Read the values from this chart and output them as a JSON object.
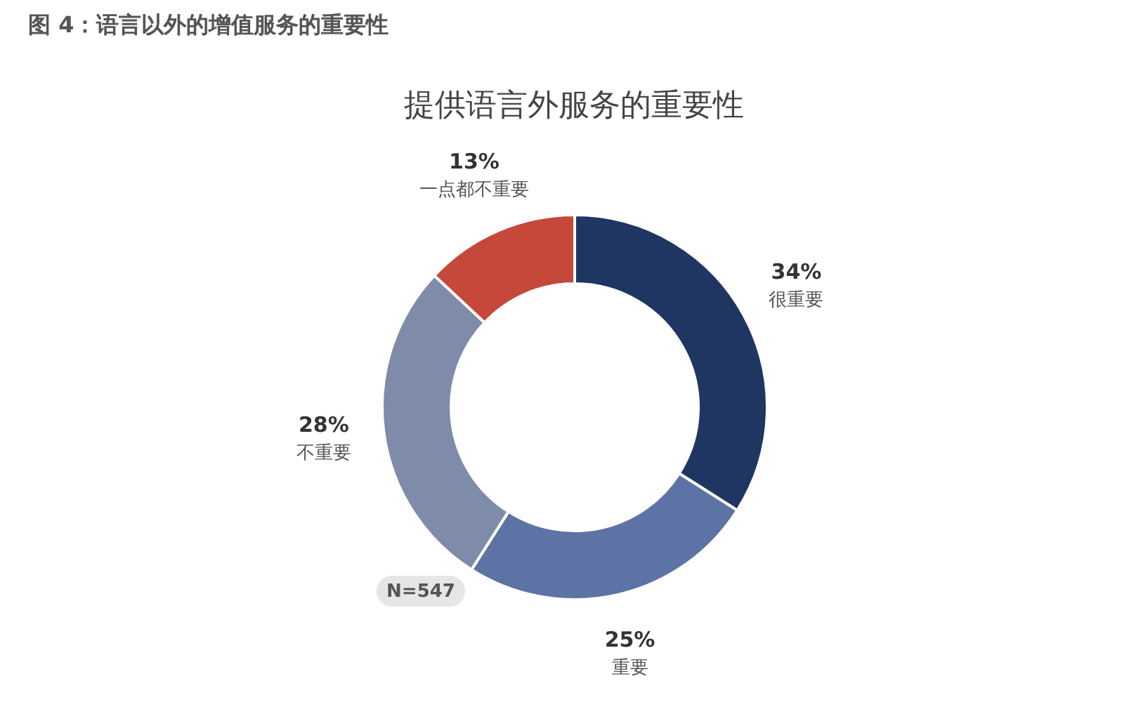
{
  "chart_data": {
    "type": "donut",
    "title": "提供语言外服务的重要性",
    "categories": [
      "很重要",
      "重要",
      "不重要",
      "一点都不重要"
    ],
    "values": [
      34,
      25,
      28,
      13
    ],
    "value_labels": [
      "34%",
      "25%",
      "28%",
      "13%"
    ],
    "colors": [
      "#1f3663",
      "#5d73a5",
      "#7e8ba9",
      "#c5483a"
    ],
    "annotations": [
      "图 4：语言以外的增值服务的重要性",
      "N=547"
    ]
  }
}
